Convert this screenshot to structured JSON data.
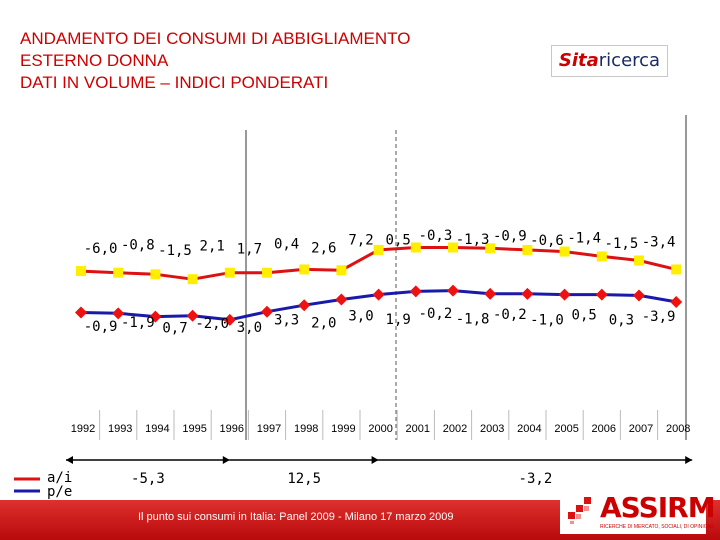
{
  "title": {
    "line1": "ANDAMENTO DEI CONSUMI DI ABBIGLIAMENTO",
    "line2": "ESTERNO DONNA",
    "line3": "DATI IN VOLUME – INDICI PONDERATI"
  },
  "logo": {
    "part1": "Sita",
    "part2": "ricerca"
  },
  "chart_data": {
    "type": "line",
    "categories": [
      "1992",
      "1993",
      "1994",
      "1995",
      "1996",
      "1997",
      "1998",
      "1999",
      "2000",
      "2001",
      "2002",
      "2003",
      "2004",
      "2005",
      "2006",
      "2007",
      "2008"
    ],
    "y_range": [
      -3,
      5
    ],
    "series": [
      {
        "name": "a/i",
        "color": "#dd1111",
        "marker": "square",
        "marker_color": "#ffee00",
        "index_values": [
          1.55,
          1.45,
          1.35,
          1.05,
          1.45,
          1.45,
          1.65,
          1.6,
          2.85,
          3.0,
          3.0,
          2.95,
          2.85,
          2.75,
          2.45,
          2.2,
          1.65
        ],
        "labels": [
          "-6,0",
          "-0,8",
          "-1,5",
          "2,1",
          "1,7",
          "0,4",
          "2,6",
          "7,2",
          "0,5",
          "-0,3",
          "-1,3",
          "-0,9",
          "-0,6",
          "-1,4",
          "-1,5",
          "-3,4"
        ]
      },
      {
        "name": "p/e",
        "color": "#1a1aaa",
        "marker": "diamond",
        "marker_color": "#ee1111",
        "index_values": [
          -1.0,
          -1.05,
          -1.25,
          -1.2,
          -1.45,
          -0.95,
          -0.55,
          -0.2,
          0.1,
          0.3,
          0.35,
          0.15,
          0.15,
          0.1,
          0.1,
          0.05,
          -0.35
        ],
        "labels": [
          "-0,9",
          "-1,9",
          "0,7",
          "-2,0",
          "3,0",
          "3,3",
          "2,0",
          "3,0",
          "1,9",
          "-0,2",
          "-1,8",
          "-0,2",
          "-1,0",
          "0,5",
          "0,3",
          "-3,9"
        ]
      }
    ],
    "periods": [
      {
        "label": "-5,3",
        "from": "1992",
        "to": "1996"
      },
      {
        "label": "12,5",
        "from": "1996",
        "to": "2000"
      },
      {
        "label": "-3,2",
        "from": "2000",
        "to": "2008"
      }
    ]
  },
  "legend": {
    "ai": "a/i",
    "pe": "p/e"
  },
  "footer": {
    "text": "Il punto sui consumi in Italia: Panel 2009 - Milano 17 marzo 2009"
  },
  "assirm": {
    "name": "ASSIRM",
    "tagline": "RICERCHE DI MERCATO, SOCIALI, DI OPINIONE"
  }
}
